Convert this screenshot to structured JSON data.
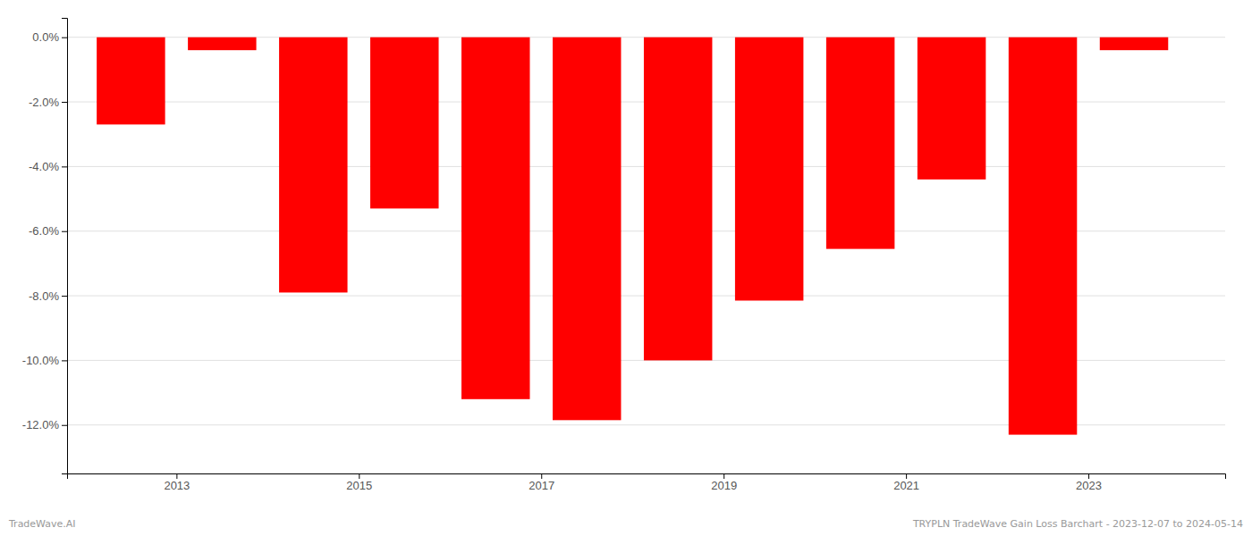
{
  "chart_data": {
    "type": "bar",
    "x": [
      2012.5,
      2013.5,
      2014.5,
      2015.5,
      2016.5,
      2017.5,
      2018.5,
      2019.5,
      2020.5,
      2021.5,
      2022.5,
      2023.5
    ],
    "values": [
      -2.7,
      -0.4,
      -7.9,
      -5.3,
      -11.2,
      -11.85,
      -10.0,
      -8.15,
      -6.55,
      -4.4,
      -12.3,
      -0.4
    ],
    "color": "#ff0000",
    "xlim": [
      2011.8,
      2024.5
    ],
    "xticks": [
      2013,
      2015,
      2017,
      2019,
      2021,
      2023
    ],
    "ylim": [
      -13.5,
      0.6
    ],
    "yticks": [
      {
        "value": 0.0,
        "label": "0.0%"
      },
      {
        "value": -2.0,
        "label": "-2.0%"
      },
      {
        "value": -4.0,
        "label": "-4.0%"
      },
      {
        "value": -6.0,
        "label": "-6.0%"
      },
      {
        "value": -8.0,
        "label": "-8.0%"
      },
      {
        "value": -10.0,
        "label": "-10.0%"
      },
      {
        "value": -12.0,
        "label": "-12.0%"
      }
    ],
    "grid": true,
    "annotations": [
      "TradeWave.AI",
      "TRYPLN TradeWave Gain Loss Barchart - 2023-12-07 to 2024-05-14"
    ]
  }
}
